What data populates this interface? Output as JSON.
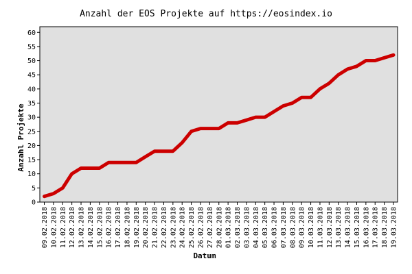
{
  "chart_data": {
    "type": "line",
    "title": "Anzahl der EOS Projekte auf https://eosindex.io",
    "xlabel": "Datum",
    "ylabel": "Anzahl Projekte",
    "ylim": [
      0,
      62
    ],
    "yticks": [
      0,
      5,
      10,
      15,
      20,
      25,
      30,
      35,
      40,
      45,
      50,
      55,
      60
    ],
    "grid": false,
    "legend": "none",
    "categories": [
      "09.02.2018",
      "10.02.2018",
      "11.02.2018",
      "12.02.2018",
      "13.02.2018",
      "14.02.2018",
      "15.02.2018",
      "16.02.2018",
      "17.02.2018",
      "18.02.2018",
      "19.02.2018",
      "20.02.2018",
      "21.02.2018",
      "22.02.2018",
      "23.02.2018",
      "24.02.2018",
      "25.02.2018",
      "26.02.2018",
      "27.02.2018",
      "28.02.2018",
      "01.03.2018",
      "02.03.2018",
      "03.03.2018",
      "04.03.2018",
      "05.03.2018",
      "06.03.2018",
      "07.03.2018",
      "08.03.2018",
      "09.03.2018",
      "10.03.2018",
      "11.03.2018",
      "12.03.2018",
      "13.03.2018",
      "14.03.2018",
      "15.03.2018",
      "16.03.2018",
      "17.03.2018",
      "18.03.2018",
      "19.03.2018"
    ],
    "series": [
      {
        "values": [
          2,
          3,
          5,
          10,
          12,
          12,
          12,
          14,
          14,
          14,
          14,
          16,
          18,
          18,
          18,
          21,
          25,
          26,
          26,
          26,
          28,
          28,
          29,
          30,
          30,
          32,
          34,
          35,
          37,
          37,
          40,
          42,
          45,
          47,
          48,
          50,
          50,
          51,
          52
        ]
      }
    ],
    "colors": {
      "line": "#cc0000",
      "plot_background": "#e0e0e0",
      "axis": "#000000"
    }
  }
}
